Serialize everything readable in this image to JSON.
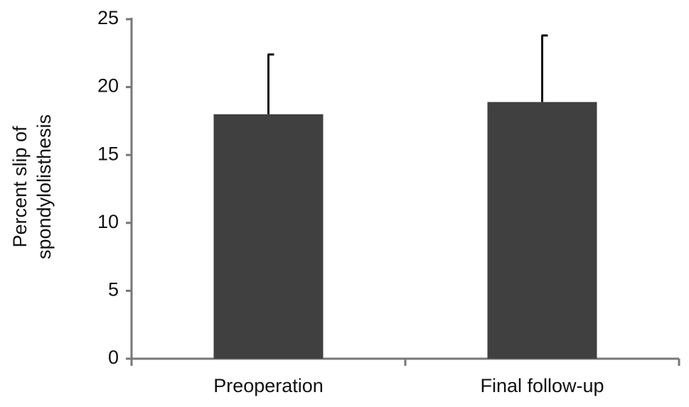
{
  "chart_data": {
    "type": "bar",
    "ylabel": [
      "Percent slip of",
      "spondylolisthesis"
    ],
    "categories": [
      "Preoperation",
      "Final follow-up"
    ],
    "values": [
      18.0,
      18.9
    ],
    "errors": [
      4.4,
      4.9
    ],
    "color": "#404040",
    "ylim": [
      0,
      25
    ],
    "yticks": [
      0,
      5,
      10,
      15,
      20,
      25
    ],
    "grid": false
  }
}
